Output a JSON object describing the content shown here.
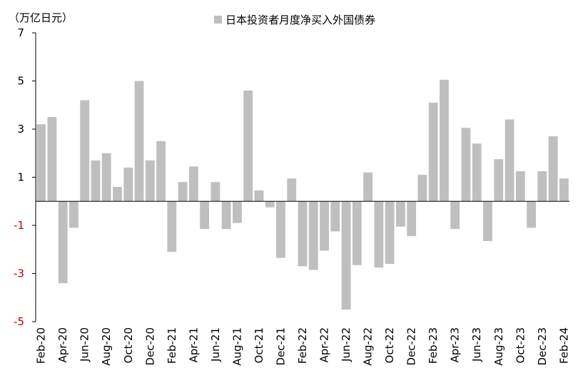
{
  "chart_data": {
    "type": "bar",
    "unit_label": "（万亿日元）",
    "legend": [
      {
        "name": "日本投资者月度净买入外国债券",
        "color": "#bfbfbf"
      }
    ],
    "legend_position": "top-center",
    "ylim": [
      -5,
      7
    ],
    "yticks": [
      7,
      5,
      3,
      1,
      -1,
      -3,
      -5
    ],
    "ytick_labels": [
      "7",
      "5",
      "3",
      "1",
      "-1",
      "-3",
      "-5"
    ],
    "negative_tick_color": "#c00000",
    "bar_color": "#bfbfbf",
    "grid": false,
    "categories": [
      "Feb-20",
      "Mar-20",
      "Apr-20",
      "May-20",
      "Jun-20",
      "Jul-20",
      "Aug-20",
      "Sep-20",
      "Oct-20",
      "Nov-20",
      "Dec-20",
      "Jan-21",
      "Feb-21",
      "Mar-21",
      "Apr-21",
      "May-21",
      "Jun-21",
      "Jul-21",
      "Aug-21",
      "Sep-21",
      "Oct-21",
      "Nov-21",
      "Dec-21",
      "Jan-22",
      "Feb-22",
      "Mar-22",
      "Apr-22",
      "May-22",
      "Jun-22",
      "Jul-22",
      "Aug-22",
      "Sep-22",
      "Oct-22",
      "Nov-22",
      "Dec-22",
      "Jan-23",
      "Feb-23",
      "Mar-23",
      "Apr-23",
      "May-23",
      "Jun-23",
      "Jul-23",
      "Aug-23",
      "Sep-23",
      "Oct-23",
      "Nov-23",
      "Dec-23",
      "Jan-24",
      "Feb-24"
    ],
    "xtick_labels": [
      "Feb-20",
      "Apr-20",
      "Jun-20",
      "Aug-20",
      "Oct-20",
      "Dec-20",
      "Feb-21",
      "Apr-21",
      "Jun-21",
      "Aug-21",
      "Oct-21",
      "Dec-21",
      "Feb-22",
      "Apr-22",
      "Jun-22",
      "Aug-22",
      "Oct-22",
      "Dec-22",
      "Feb-23",
      "Apr-23",
      "Jun-23",
      "Aug-23",
      "Oct-23",
      "Dec-23",
      "Feb-24"
    ],
    "series": [
      {
        "name": "日本投资者月度净买入外国债券",
        "values": [
          3.2,
          3.5,
          -3.4,
          -1.1,
          4.2,
          1.7,
          2.0,
          0.6,
          1.4,
          5.0,
          1.7,
          2.5,
          -2.1,
          0.8,
          1.45,
          -1.15,
          0.8,
          -1.15,
          -0.9,
          4.6,
          0.45,
          -0.25,
          -2.35,
          0.95,
          -2.7,
          -2.85,
          -2.05,
          -1.25,
          -4.5,
          -2.65,
          1.2,
          -2.75,
          -2.6,
          -1.05,
          -1.45,
          1.1,
          4.1,
          5.05,
          -1.15,
          3.05,
          2.4,
          -1.65,
          1.75,
          3.4,
          1.25,
          -1.1,
          1.25,
          2.7,
          0.95
        ]
      }
    ]
  }
}
